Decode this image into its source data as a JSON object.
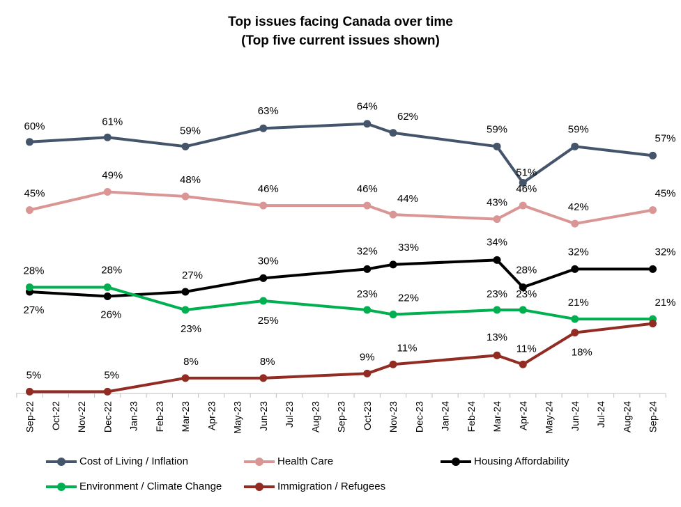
{
  "chart_data": {
    "type": "line",
    "title": "Top issues facing Canada over time",
    "subtitle": "(Top five current issues shown)",
    "x_ticks": [
      "Sep-22",
      "Oct-22",
      "Nov-22",
      "Dec-22",
      "Jan-23",
      "Feb-23",
      "Mar-23",
      "Apr-23",
      "May-23",
      "Jun-23",
      "Jul-23",
      "Aug-23",
      "Sep-23",
      "Oct-23",
      "Nov-23",
      "Dec-23",
      "Jan-24",
      "Feb-24",
      "Mar-24",
      "Apr-24",
      "May-24",
      "Jun-24",
      "Jul-24",
      "Aug-24",
      "Sep-24"
    ],
    "x": [
      "Sep-22",
      "Dec-22",
      "Mar-23",
      "Jun-23",
      "Oct-23",
      "Nov-23",
      "Mar-24",
      "Apr-24",
      "Jun-24",
      "Sep-24"
    ],
    "ylim": [
      0,
      75
    ],
    "legend_position": "bottom",
    "grid": false,
    "series": [
      {
        "name": "Cost of Living / Inflation",
        "color": "#44546a",
        "values": [
          60,
          61,
          59,
          63,
          64,
          62,
          59,
          51,
          59,
          57
        ],
        "labels": [
          "60%",
          "61%",
          "59%",
          "63%",
          "64%",
          "62%",
          "59%",
          "51%",
          "59%",
          "57%"
        ]
      },
      {
        "name": "Health Care",
        "color": "#d99694",
        "values": [
          45,
          49,
          48,
          46,
          46,
          44,
          43,
          46,
          42,
          45
        ],
        "labels": [
          "45%",
          "49%",
          "48%",
          "46%",
          "46%",
          "44%",
          "43%",
          "46%",
          "42%",
          "45%"
        ]
      },
      {
        "name": "Housing Affordability",
        "color": "#000000",
        "values": [
          27,
          26,
          27,
          30,
          32,
          33,
          34,
          28,
          32,
          32
        ],
        "labels": [
          "27%",
          "26%",
          "27%",
          "30%",
          "32%",
          "33%",
          "34%",
          "28%",
          "32%",
          "32%"
        ]
      },
      {
        "name": "Environment / Climate Change",
        "color": "#00b050",
        "values": [
          28,
          28,
          23,
          25,
          23,
          22,
          23,
          23,
          21,
          21
        ],
        "labels": [
          "28%",
          "28%",
          "23%",
          "25%",
          "23%",
          "22%",
          "23%",
          "23%",
          "21%",
          "21%"
        ]
      },
      {
        "name": "Immigration / Refugees",
        "color": "#922b21",
        "values": [
          5,
          5,
          8,
          8,
          9,
          11,
          13,
          11,
          18,
          20
        ],
        "labels": [
          "5%",
          "5%",
          "8%",
          "8%",
          "9%",
          "11%",
          "13%",
          "11%",
          "18%",
          ""
        ]
      }
    ]
  }
}
